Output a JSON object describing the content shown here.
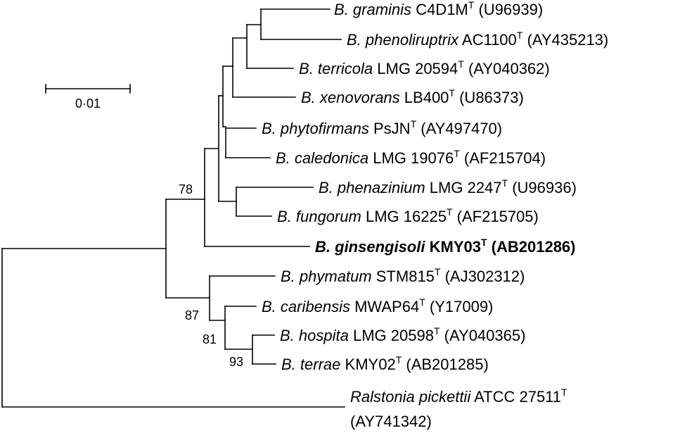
{
  "scale_bar": {
    "label": "0·01"
  },
  "taxa": [
    {
      "id": "graminis",
      "genus": "B.",
      "species": "graminis",
      "strain": "C4D1M",
      "sup": "T",
      "accession": "(U96939)",
      "bold": false
    },
    {
      "id": "phenoliruptrix",
      "genus": "B.",
      "species": "phenoliruptrix",
      "strain": "AC1100",
      "sup": "T",
      "accession": "(AY435213)",
      "bold": false
    },
    {
      "id": "terricola",
      "genus": "B.",
      "species": "terricola",
      "strain": "LMG 20594",
      "sup": "T",
      "accession": "(AY040362)",
      "bold": false
    },
    {
      "id": "xenovorans",
      "genus": "B.",
      "species": "xenovorans",
      "strain": "LB400",
      "sup": "T",
      "accession": "(U86373)",
      "bold": false
    },
    {
      "id": "phytofirmans",
      "genus": "B.",
      "species": "phytofirmans",
      "strain": "PsJN",
      "sup": "T",
      "accession": "(AY497470)",
      "bold": false
    },
    {
      "id": "caledonica",
      "genus": "B.",
      "species": "caledonica",
      "strain": "LMG 19076",
      "sup": "T",
      "accession": "(AF215704)",
      "bold": false
    },
    {
      "id": "phenazinium",
      "genus": "B.",
      "species": "phenazinium",
      "strain": "LMG 2247",
      "sup": "T",
      "accession": "(U96936)",
      "bold": false
    },
    {
      "id": "fungorum",
      "genus": "B.",
      "species": "fungorum",
      "strain": "LMG 16225",
      "sup": "T",
      "accession": "(AF215705)",
      "bold": false
    },
    {
      "id": "ginsengisoli",
      "genus": "B.",
      "species": "ginsengisoli",
      "strain": "KMY03",
      "sup": "T",
      "accession": "(AB201286)",
      "bold": true
    },
    {
      "id": "phymatum",
      "genus": "B.",
      "species": "phymatum",
      "strain": "STM815",
      "sup": "T",
      "accession": "(AJ302312)",
      "bold": false
    },
    {
      "id": "caribensis",
      "genus": "B.",
      "species": "caribensis",
      "strain": "MWAP64",
      "sup": "T",
      "accession": "(Y17009)",
      "bold": false
    },
    {
      "id": "hospita",
      "genus": "B.",
      "species": "hospita",
      "strain": "LMG 20598",
      "sup": "T",
      "accession": "(AY040365)",
      "bold": false
    },
    {
      "id": "terrae",
      "genus": "B.",
      "species": "terrae",
      "strain": "KMY02",
      "sup": "T",
      "accession": "(AB201285)",
      "bold": false
    },
    {
      "id": "ralstonia",
      "genus": "Ralstonia",
      "species": "pickettii",
      "strain": "ATCC 27511",
      "sup": "T",
      "accession": "(AY741342)",
      "bold": false
    }
  ],
  "bootstrap": {
    "b78": "78",
    "b87": "87",
    "b81": "81",
    "b93": "93"
  }
}
